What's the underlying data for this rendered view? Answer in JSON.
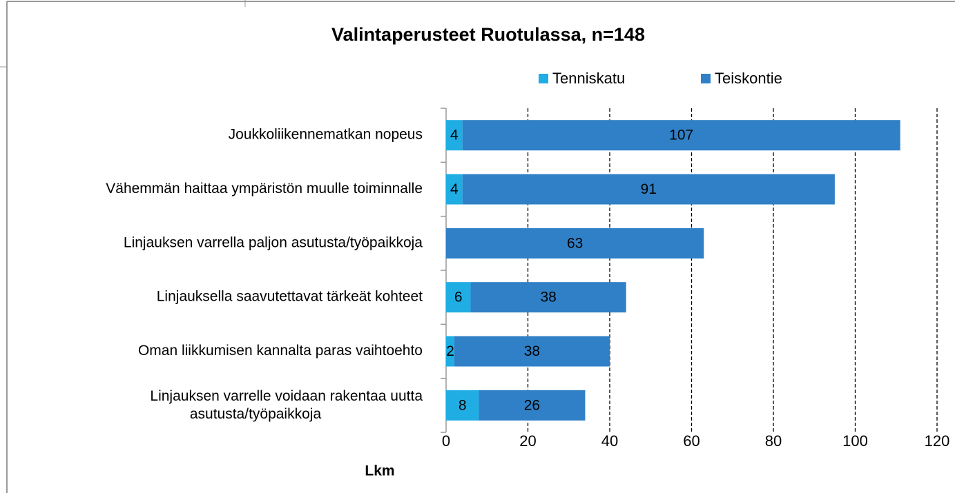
{
  "chart_data": {
    "type": "bar",
    "orientation": "horizontal",
    "stacked": true,
    "title": "Valintaperusteet Ruotulassa, n=148",
    "xlabel": "Lkm",
    "categories": [
      "Joukkoliikennematkan nopeus",
      "Vähemmän haittaa ympäristön muulle toiminnalle",
      "Linjauksen varrella paljon asutusta/työpaikkoja",
      "Linjauksella saavutettavat tärkeät kohteet",
      "Oman liikkumisen kannalta paras vaihtoehto",
      "Linjauksen varrelle voidaan rakentaa uutta\nasutusta/työpaikkoja"
    ],
    "series": [
      {
        "name": "Tenniskatu",
        "color": "#1fade3",
        "values": [
          4,
          4,
          0,
          6,
          2,
          8
        ]
      },
      {
        "name": "Teiskontie",
        "color": "#2f80c6",
        "values": [
          107,
          91,
          63,
          38,
          38,
          26
        ]
      }
    ],
    "xlim": [
      0,
      120
    ],
    "xticks": [
      0,
      20,
      40,
      60,
      80,
      100,
      120
    ],
    "grid": true,
    "legend": "top"
  }
}
